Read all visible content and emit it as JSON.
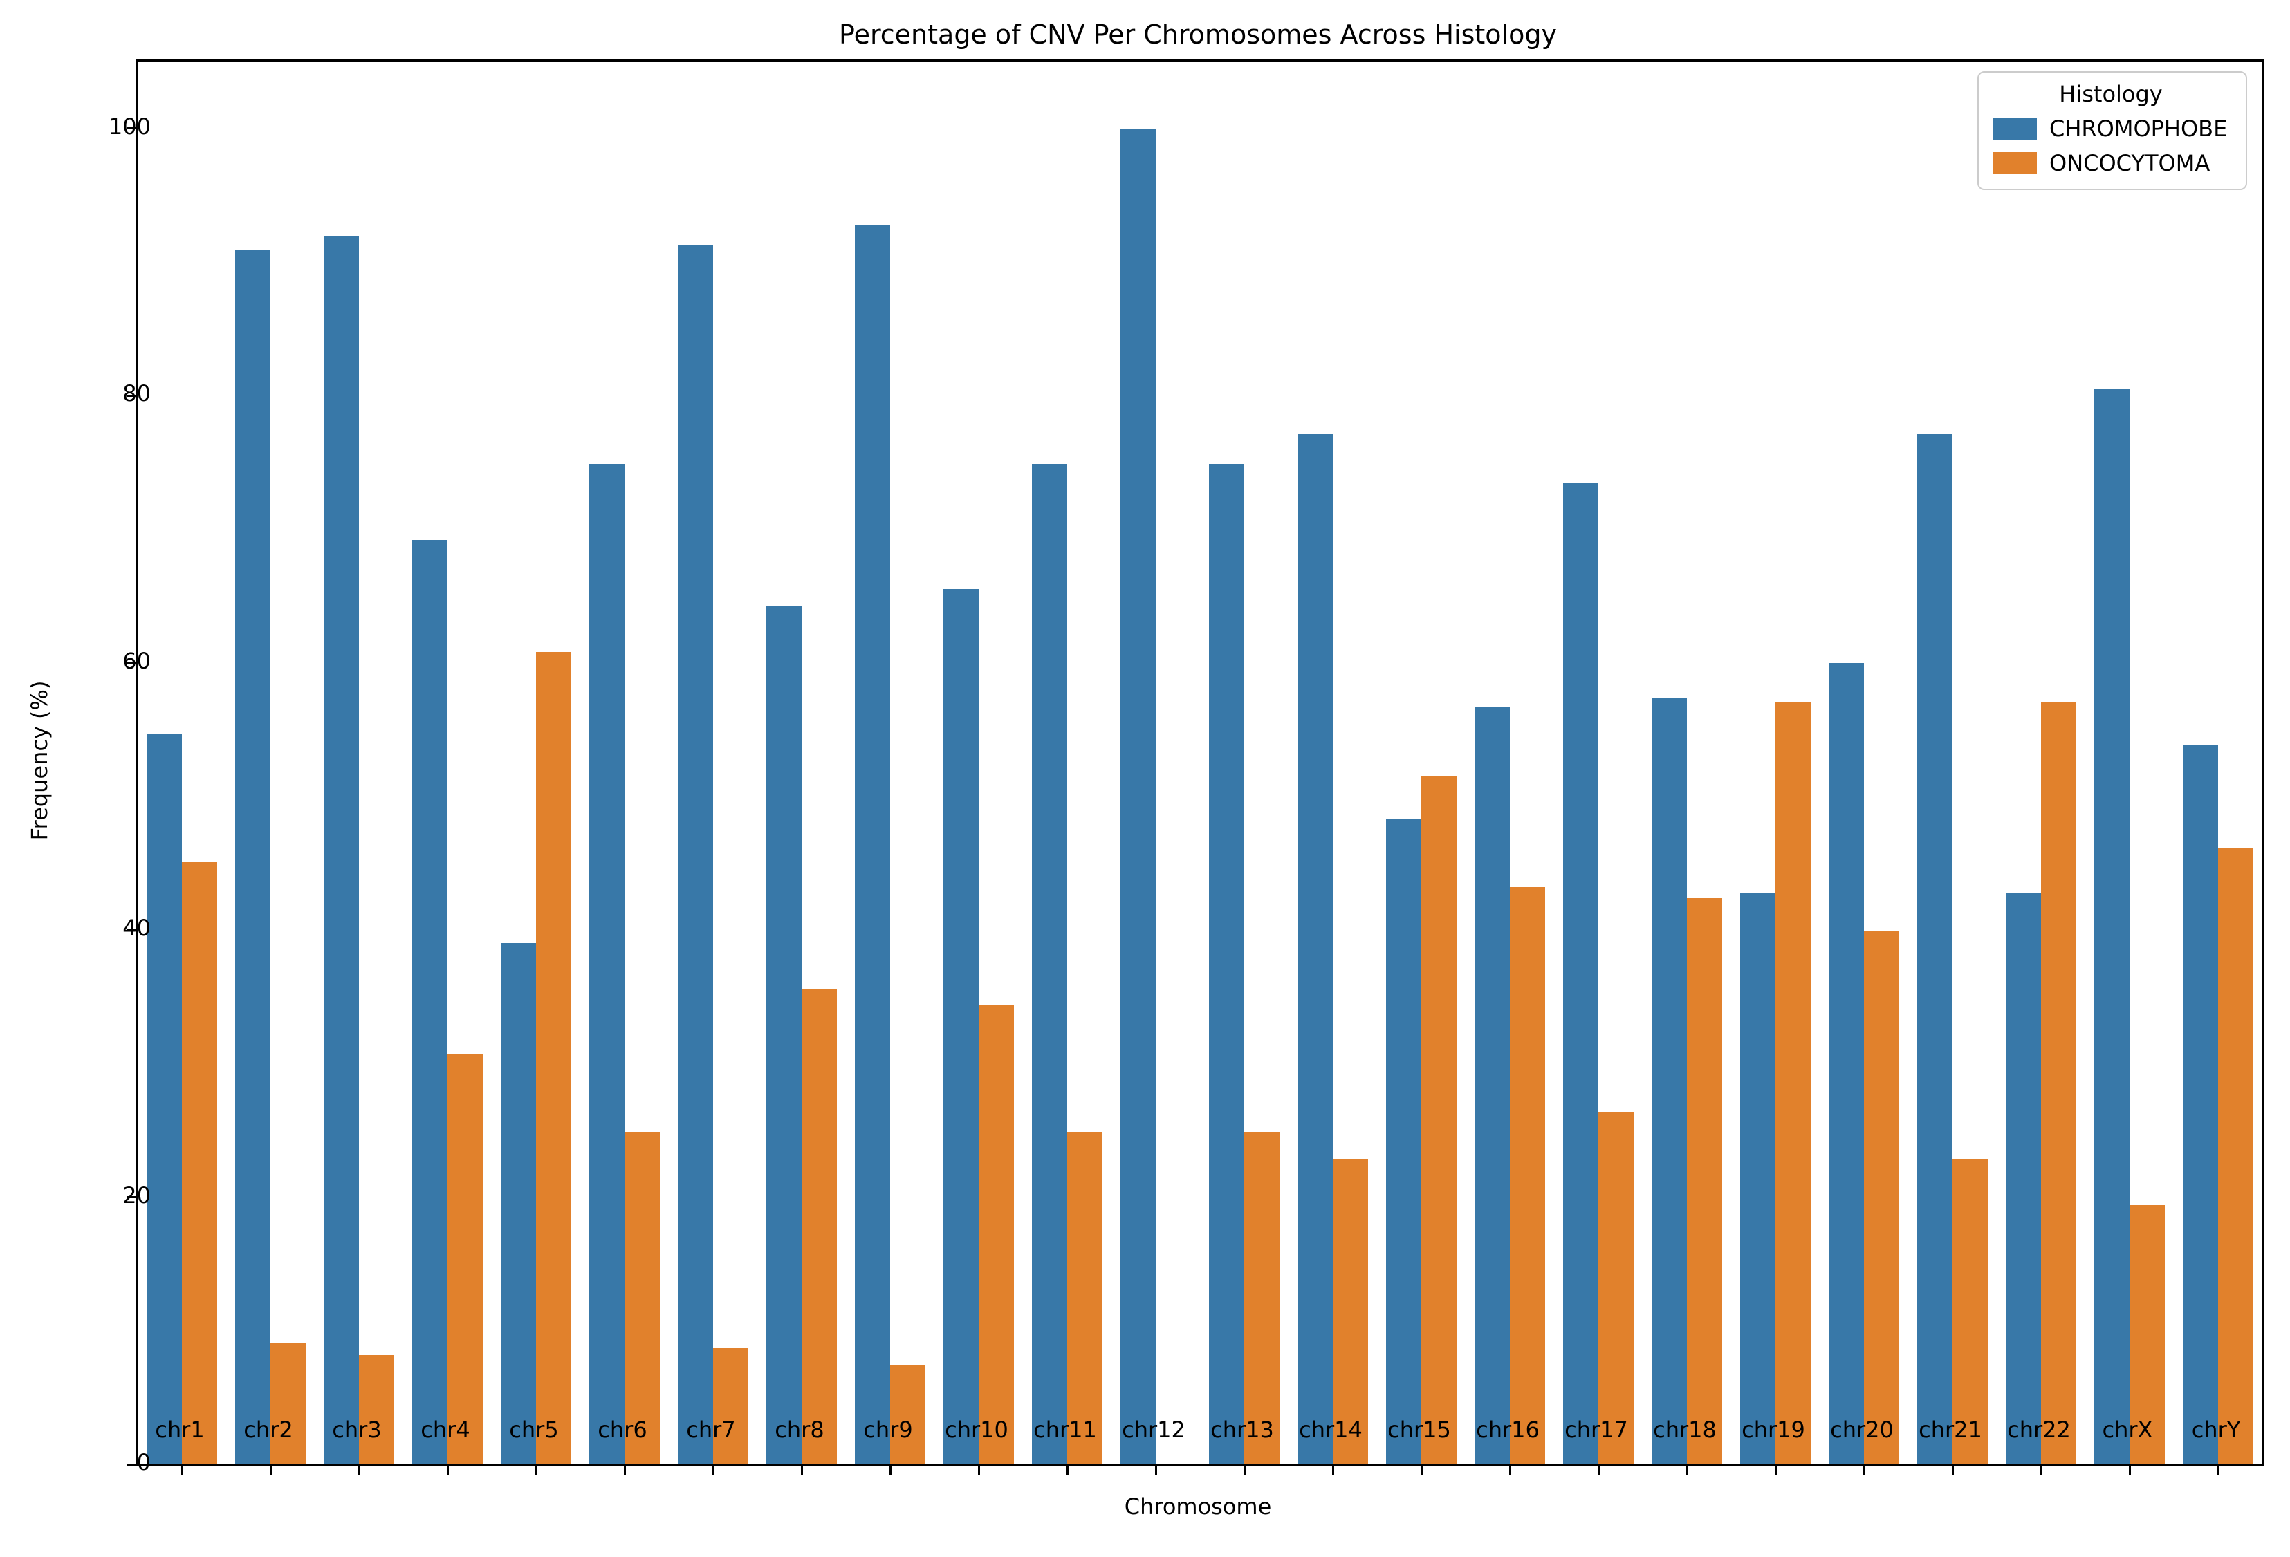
{
  "figure": {
    "title": "Percentage of CNV Per Chromosomes Across Histology",
    "xlabel": "Chromosome",
    "ylabel": "Frequency (%)"
  },
  "legend": {
    "title": "Histology",
    "entries": [
      {
        "label": "CHROMOPHOBE",
        "color": "#3878A8"
      },
      {
        "label": "ONCOCYTOMA",
        "color": "#E1812C"
      }
    ]
  },
  "axes": {
    "y_ticks": [
      0,
      20,
      40,
      60,
      80,
      100
    ],
    "y_max": 105,
    "grid": false
  },
  "chart_data": {
    "type": "bar",
    "title": "Percentage of CNV Per Chromosomes Across Histology",
    "xlabel": "Chromosome",
    "ylabel": "Frequency (%)",
    "ylim": [
      0,
      105
    ],
    "legend_position": "upper right",
    "legend_title": "Histology",
    "grid": false,
    "categories": [
      "chr1",
      "chr2",
      "chr3",
      "chr4",
      "chr5",
      "chr6",
      "chr7",
      "chr8",
      "chr9",
      "chr10",
      "chr11",
      "chr12",
      "chr13",
      "chr14",
      "chr15",
      "chr16",
      "chr17",
      "chr18",
      "chr19",
      "chr20",
      "chr21",
      "chr22",
      "chrX",
      "chrY"
    ],
    "series": [
      {
        "name": "CHROMOPHOBE",
        "color": "#3878A8",
        "values": [
          54.7,
          90.9,
          91.9,
          69.2,
          39.0,
          74.9,
          91.3,
          64.2,
          92.8,
          65.5,
          74.9,
          100.0,
          74.9,
          77.1,
          48.3,
          56.7,
          73.5,
          57.4,
          42.8,
          60.0,
          77.1,
          42.8,
          80.5,
          53.8
        ]
      },
      {
        "name": "ONCOCYTOMA",
        "color": "#E1812C",
        "values": [
          45.1,
          9.1,
          8.2,
          30.7,
          60.8,
          24.9,
          8.7,
          35.6,
          7.4,
          34.4,
          24.9,
          0.0,
          24.9,
          22.8,
          51.5,
          43.2,
          26.4,
          42.4,
          57.1,
          39.9,
          22.8,
          57.1,
          19.4,
          46.1
        ]
      }
    ]
  }
}
